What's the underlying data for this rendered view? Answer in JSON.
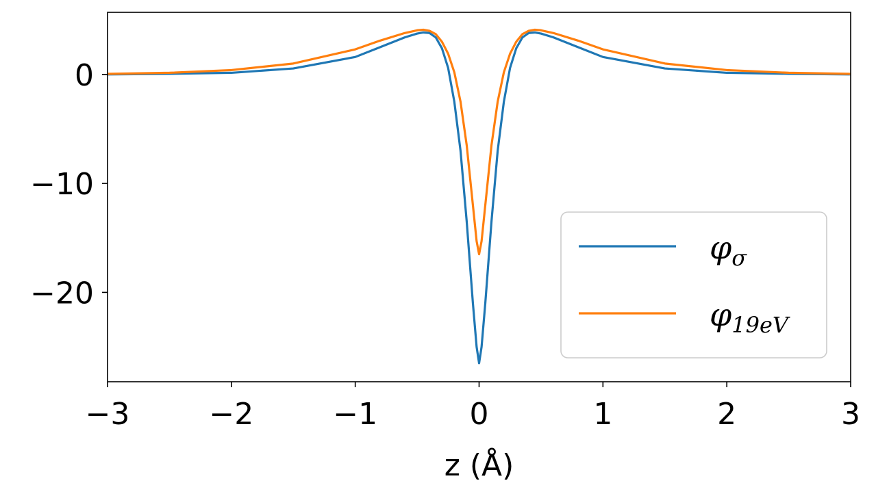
{
  "chart_data": {
    "type": "line",
    "xlabel": "z (Å)",
    "ylabel": "",
    "xlim": [
      -3,
      3
    ],
    "ylim": [
      -28.2,
      5.7
    ],
    "grid": false,
    "legend_position": "lower-right",
    "x_ticks": [
      -3,
      -2,
      -1,
      0,
      1,
      2,
      3
    ],
    "x_tick_labels": [
      "−3",
      "−2",
      "−1",
      "0",
      "1",
      "2",
      "3"
    ],
    "y_ticks": [
      0,
      -10,
      -20
    ],
    "y_tick_labels": [
      "0",
      "−10",
      "−20"
    ],
    "series": [
      {
        "name": "φσ",
        "legend_base": "φ",
        "legend_sub": "σ",
        "color": "#1f77b4",
        "x": [
          -3,
          -2.5,
          -2,
          -1.5,
          -1,
          -0.8,
          -0.6,
          -0.5,
          -0.45,
          -0.4,
          -0.35,
          -0.3,
          -0.25,
          -0.2,
          -0.15,
          -0.1,
          -0.05,
          -0.02,
          0,
          0.02,
          0.05,
          0.1,
          0.15,
          0.2,
          0.25,
          0.3,
          0.35,
          0.4,
          0.45,
          0.5,
          0.6,
          0.8,
          1,
          1.5,
          2,
          2.5,
          3
        ],
        "y": [
          0.0,
          0.06,
          0.15,
          0.55,
          1.6,
          2.5,
          3.4,
          3.75,
          3.85,
          3.8,
          3.4,
          2.4,
          0.6,
          -2.5,
          -7.0,
          -13.5,
          -21.0,
          -25.0,
          -26.5,
          -25.0,
          -21.0,
          -13.5,
          -7.0,
          -2.5,
          0.6,
          2.4,
          3.4,
          3.8,
          3.85,
          3.75,
          3.4,
          2.5,
          1.6,
          0.55,
          0.15,
          0.06,
          0.0
        ]
      },
      {
        "name": "φ19eV",
        "legend_base": "φ",
        "legend_sub": "19eV",
        "color": "#ff7f0e",
        "x": [
          -3,
          -2.5,
          -2,
          -1.5,
          -1,
          -0.8,
          -0.6,
          -0.5,
          -0.45,
          -0.4,
          -0.35,
          -0.3,
          -0.25,
          -0.2,
          -0.15,
          -0.1,
          -0.05,
          -0.02,
          0,
          0.02,
          0.05,
          0.1,
          0.15,
          0.2,
          0.25,
          0.3,
          0.35,
          0.4,
          0.45,
          0.5,
          0.6,
          0.8,
          1,
          1.5,
          2,
          2.5,
          3
        ],
        "y": [
          0.05,
          0.15,
          0.4,
          1.0,
          2.3,
          3.1,
          3.8,
          4.05,
          4.1,
          4.0,
          3.7,
          3.0,
          1.9,
          0.2,
          -2.5,
          -6.5,
          -12.0,
          -15.3,
          -16.5,
          -15.3,
          -12.0,
          -6.5,
          -2.5,
          0.2,
          1.9,
          3.0,
          3.7,
          4.0,
          4.1,
          4.05,
          3.8,
          3.1,
          2.3,
          1.0,
          0.4,
          0.15,
          0.05
        ]
      }
    ]
  }
}
